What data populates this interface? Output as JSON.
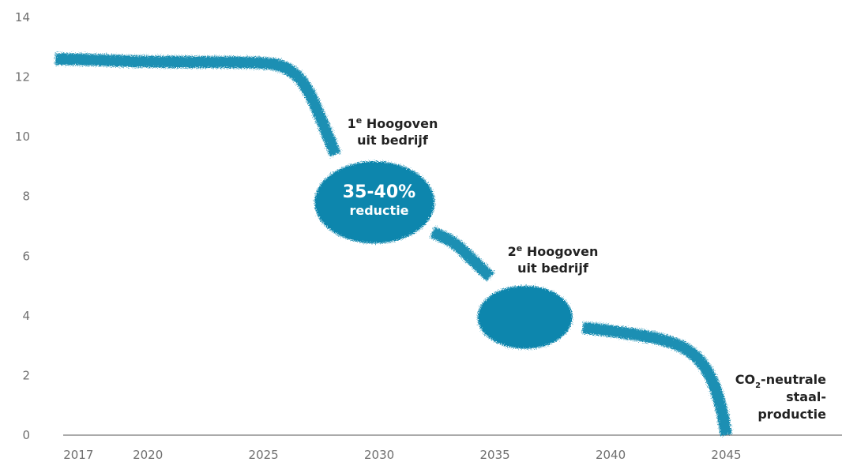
{
  "chart_data": {
    "type": "line",
    "title": "",
    "xlabel": "",
    "ylabel": "",
    "xlim": [
      2016,
      2050
    ],
    "ylim": [
      0,
      14
    ],
    "x_ticks": [
      2017,
      2020,
      2025,
      2030,
      2035,
      2040,
      2045
    ],
    "y_ticks": [
      0,
      2,
      4,
      6,
      8,
      10,
      12,
      14
    ],
    "x_tick_labels": [
      "2017",
      "2020",
      "2025",
      "2030",
      "2035",
      "2040",
      "2045"
    ],
    "y_tick_labels": [
      "0",
      "2",
      "4",
      "6",
      "8",
      "10",
      "12",
      "14"
    ],
    "grid": false,
    "legend": "none",
    "line_color": "#1a8fb3",
    "bubble_color": "#0a86ad",
    "series": [
      {
        "segments": [
          {
            "x": [
              2016,
              2017,
              2020,
              2025,
              2026,
              2026.8,
              2027.5,
              2028.1
            ],
            "y": [
              12.6,
              12.6,
              12.5,
              12.5,
              12.35,
              11.8,
              10.6,
              9.4
            ]
          },
          {
            "x": [
              2032.3,
              2033.2,
              2034.0,
              2034.8
            ],
            "y": [
              6.8,
              6.5,
              5.9,
              5.3
            ]
          },
          {
            "x": [
              2038.8,
              2040,
              2042.5,
              2043.7,
              2044.4,
              2044.8,
              2045.0
            ],
            "y": [
              3.6,
              3.5,
              3.2,
              2.7,
              1.9,
              0.9,
              0
            ]
          }
        ],
        "bubbles": [
          {
            "x": 2029.8,
            "y": 7.8,
            "label": "35-40%",
            "sublabel": "reductie"
          },
          {
            "x": 2036.3,
            "y": 3.95,
            "label": "",
            "sublabel": ""
          }
        ]
      }
    ],
    "annotations": [
      {
        "id": "hoogoven1",
        "lines": [
          "1e Hoogoven",
          "uit bedrijf"
        ],
        "superscript": "e",
        "x": 2029.8,
        "y": 10.6
      },
      {
        "id": "hoogoven2",
        "lines": [
          "2e Hoogoven",
          "uit bedrijf"
        ],
        "superscript": "e",
        "x": 2036.5,
        "y": 6.2
      },
      {
        "id": "co2",
        "lines": [
          "CO2-neutrale",
          "staal-",
          "productie"
        ],
        "subscript": "2",
        "x": 2049.3,
        "y": 1.9
      }
    ]
  },
  "labels": {
    "hoogoven1_line1_num": "1",
    "hoogoven1_line1_sup": "e",
    "hoogoven1_line1_rest": " Hoogoven",
    "hoogoven1_line2": "uit bedrijf",
    "hoogoven2_line1_num": "2",
    "hoogoven2_line1_sup": "e",
    "hoogoven2_line1_rest": " Hoogoven",
    "hoogoven2_line2": "uit bedrijf",
    "co2_line1_co": "CO",
    "co2_line1_sub": "2",
    "co2_line1_rest": "-neutrale",
    "co2_line2": "staal-",
    "co2_line3": "productie",
    "bubble1_label": "35-40%",
    "bubble1_sublabel": "reductie"
  }
}
